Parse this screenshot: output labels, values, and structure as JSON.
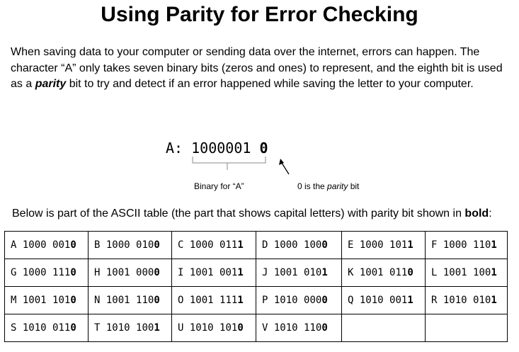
{
  "title": "Using Parity for Error Checking",
  "intro": {
    "part1": "When saving data to your computer or sending data over the internet, errors can happen. The character  “A” only takes seven binary bits (zeros and ones) to represent, and the eighth bit is used as a ",
    "parity_word": "parity",
    "part2": " bit  to try and detect if an error happened while saving the letter to your computer."
  },
  "example": {
    "prefix": "A: ",
    "data_bits": "1000001",
    "parity_bit": "0",
    "caption_left": "Binary for “A”",
    "caption_right_pre": "0 is the ",
    "caption_right_italic": "parity",
    "caption_right_post": " bit"
  },
  "table_intro": {
    "text": "Below is part of the ASCII table (the part that shows capital letters) with parity bit shown in ",
    "bold_word": "bold",
    "end": ":"
  },
  "table": {
    "rows": [
      [
        {
          "letter": "A",
          "bits": "1000 001",
          "parity": "0"
        },
        {
          "letter": "B",
          "bits": "1000 010",
          "parity": "0"
        },
        {
          "letter": "C",
          "bits": "1000 011",
          "parity": "1"
        },
        {
          "letter": "D",
          "bits": "1000 100",
          "parity": "0"
        },
        {
          "letter": "E",
          "bits": "1000 101",
          "parity": "1"
        },
        {
          "letter": "F",
          "bits": "1000 110",
          "parity": "1"
        }
      ],
      [
        {
          "letter": "G",
          "bits": "1000 111",
          "parity": "0"
        },
        {
          "letter": "H",
          "bits": "1001 000",
          "parity": "0"
        },
        {
          "letter": "I",
          "bits": "1001 001",
          "parity": "1"
        },
        {
          "letter": "J",
          "bits": "1001 010",
          "parity": "1"
        },
        {
          "letter": "K",
          "bits": "1001 011",
          "parity": "0"
        },
        {
          "letter": "L",
          "bits": "1001 100",
          "parity": "1"
        }
      ],
      [
        {
          "letter": "M",
          "bits": "1001 101",
          "parity": "0"
        },
        {
          "letter": "N",
          "bits": "1001 110",
          "parity": "0"
        },
        {
          "letter": "O",
          "bits": "1001 111",
          "parity": "1"
        },
        {
          "letter": "P",
          "bits": "1010 000",
          "parity": "0"
        },
        {
          "letter": "Q",
          "bits": "1010 001",
          "parity": "1"
        },
        {
          "letter": "R",
          "bits": "1010 010",
          "parity": "1"
        }
      ],
      [
        {
          "letter": "S",
          "bits": "1010 011",
          "parity": "0"
        },
        {
          "letter": "T",
          "bits": "1010 100",
          "parity": "1"
        },
        {
          "letter": "U",
          "bits": "1010 101",
          "parity": "0"
        },
        {
          "letter": "V",
          "bits": "1010 110",
          "parity": "0"
        },
        null,
        null
      ]
    ]
  }
}
